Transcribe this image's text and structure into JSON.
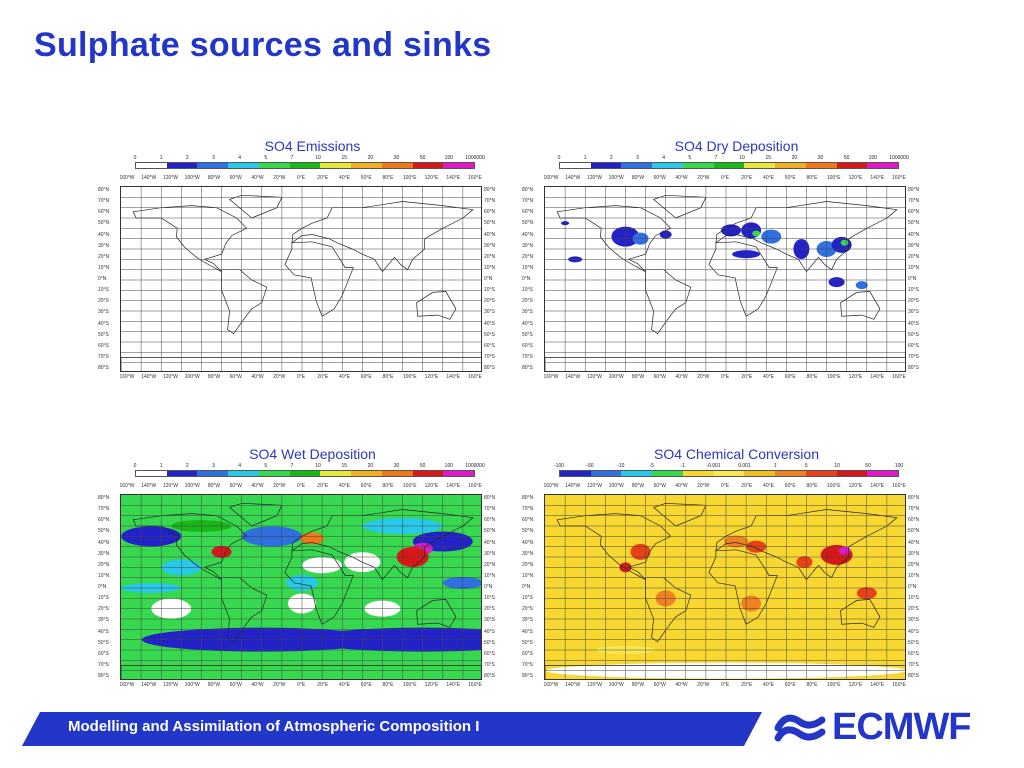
{
  "page": {
    "title": "Sulphate sources and sinks",
    "footer": "Modelling and Assimilation of Atmospheric Composition I",
    "logo_text": "ECMWF"
  },
  "axes": {
    "lon_labels": [
      "160°W",
      "140°W",
      "120°W",
      "100°W",
      "80°W",
      "60°W",
      "40°W",
      "20°W",
      "0°E",
      "20°E",
      "40°E",
      "60°E",
      "80°E",
      "100°E",
      "120°E",
      "140°E",
      "160°E"
    ],
    "lat_labels": [
      "80°N",
      "70°N",
      "60°N",
      "50°N",
      "40°N",
      "30°N",
      "20°N",
      "10°N",
      "0°N",
      "10°S",
      "20°S",
      "30°S",
      "40°S",
      "50°S",
      "60°S",
      "70°S",
      "80°S"
    ]
  },
  "scale_colors": [
    "#ffffff",
    "#2222c8",
    "#2f6fe0",
    "#28c8e8",
    "#36d84e",
    "#18b818",
    "#e8e83c",
    "#f0b020",
    "#f07818",
    "#d81818",
    "#e018c8",
    "#a840d8"
  ],
  "chem_colors": [
    "#2222c8",
    "#2f6fe0",
    "#28c8e8",
    "#36d84e",
    "#f8d830",
    "#f8e850",
    "#f0c020",
    "#f08020",
    "#e84018",
    "#d81818",
    "#e018c8"
  ],
  "panels": [
    {
      "title": "SO4 Emissions",
      "scale": [
        "0",
        "1",
        "2",
        "3",
        "4",
        "5",
        "7",
        "10",
        "15",
        "20",
        "30",
        "50",
        "100",
        "1000000"
      ]
    },
    {
      "title": "SO4 Dry Deposition",
      "scale": [
        "0",
        "1",
        "2",
        "3",
        "4",
        "5",
        "7",
        "10",
        "15",
        "20",
        "30",
        "50",
        "100",
        "1000000"
      ]
    },
    {
      "title": "SO4 Wet Deposition",
      "scale": [
        "0",
        "1",
        "2",
        "3",
        "4",
        "5",
        "7",
        "10",
        "15",
        "20",
        "30",
        "50",
        "100",
        "1000000"
      ]
    },
    {
      "title": "SO4 Chemical Conversion",
      "scale": [
        "-100",
        "-50",
        "-10",
        "-5",
        "-1",
        "-0.001",
        "0.001",
        "1",
        "5",
        "10",
        "50",
        "100"
      ]
    }
  ]
}
